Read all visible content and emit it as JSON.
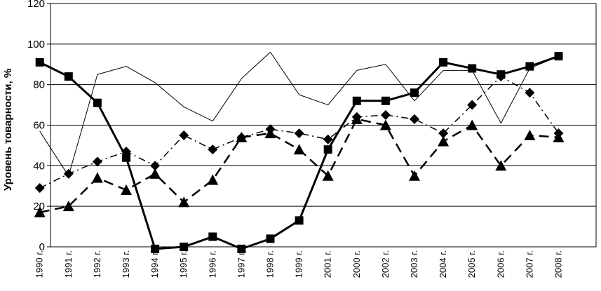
{
  "chart_data": {
    "type": "line",
    "ylabel": "Уровень товарности, %",
    "ylim": [
      0,
      120
    ],
    "yticks": [
      "0",
      "20",
      "40",
      "60",
      "80",
      "100",
      "120"
    ],
    "grid": true,
    "legend": "none",
    "categories": [
      "1990 г.",
      "1991 г.",
      "1992 г.",
      "1993 г.",
      "1994 г.",
      "1995 г.",
      "1996 г.",
      "1997 г.",
      "1998 г.",
      "1999 г.",
      "2001 г.",
      "2000 г.",
      "2002 г.",
      "2003 г.",
      "2004 г.",
      "2005 г.",
      "2006 г.",
      "2007 г.",
      "2008 г."
    ],
    "series": [
      {
        "values": [
          91,
          84,
          71,
          44,
          -1,
          0,
          5,
          -1,
          4,
          13,
          48,
          72,
          72,
          76,
          91,
          88,
          85,
          89,
          94
        ],
        "color": "#000000",
        "style": "solid",
        "width": 3,
        "marker": "square"
      },
      {
        "values": [
          57,
          35,
          85,
          89,
          81,
          69,
          62,
          83,
          96,
          75,
          70,
          87,
          90,
          72,
          87,
          87,
          61,
          88,
          94
        ],
        "color": "#000000",
        "style": "solid",
        "width": 1,
        "marker": "none"
      },
      {
        "values": [
          29,
          36,
          42,
          47,
          40,
          55,
          48,
          54,
          58,
          56,
          53,
          64,
          65,
          63,
          56,
          70,
          84,
          76,
          56
        ],
        "color": "#000000",
        "style": "dashdot",
        "width": 1.5,
        "marker": "diamond"
      },
      {
        "values": [
          17,
          20,
          34,
          28,
          36,
          22,
          33,
          54,
          56,
          48,
          35,
          63,
          60,
          35,
          52,
          60,
          40,
          55,
          54
        ],
        "color": "#000000",
        "style": "dashed",
        "width": 2.5,
        "marker": "triangle"
      }
    ]
  }
}
